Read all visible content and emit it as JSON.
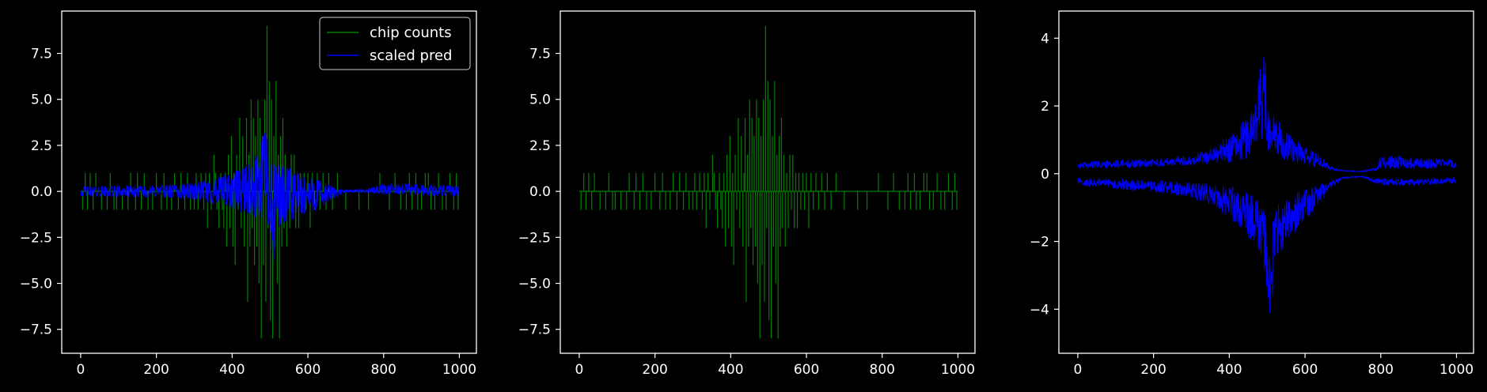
{
  "colors": {
    "background": "#000000",
    "axes": "#ffffff",
    "counts": "#008000",
    "pred": "#0000ff"
  },
  "chart_data": [
    {
      "type": "line",
      "title": "",
      "xlabel": "",
      "ylabel": "",
      "xlim": [
        -50,
        1045
      ],
      "ylim": [
        -8.8,
        9.8
      ],
      "xticks": [
        0,
        200,
        400,
        600,
        800,
        1000
      ],
      "yticks": [
        -7.5,
        -5.0,
        -2.5,
        0.0,
        2.5,
        5.0,
        7.5
      ],
      "legend": {
        "position": "top-right",
        "entries": [
          "chip counts",
          "scaled pred"
        ]
      },
      "grid": false,
      "x_range": [
        0,
        999
      ],
      "series": [
        {
          "name": "chip counts",
          "kind": "sparse_spikes",
          "color": "#008000",
          "baseline": 0,
          "spikes": [
            [
              5,
              -1
            ],
            [
              12,
              1
            ],
            [
              18,
              -1
            ],
            [
              25,
              1
            ],
            [
              33,
              -1
            ],
            [
              40,
              1
            ],
            [
              55,
              -1
            ],
            [
              70,
              -1
            ],
            [
              78,
              1
            ],
            [
              88,
              -1
            ],
            [
              95,
              -1
            ],
            [
              110,
              -1
            ],
            [
              125,
              -1
            ],
            [
              132,
              1
            ],
            [
              145,
              -1
            ],
            [
              150,
              1
            ],
            [
              160,
              -1
            ],
            [
              168,
              1
            ],
            [
              178,
              -1
            ],
            [
              190,
              -1
            ],
            [
              200,
              1
            ],
            [
              213,
              -1
            ],
            [
              220,
              1
            ],
            [
              228,
              -1
            ],
            [
              240,
              -1
            ],
            [
              248,
              1
            ],
            [
              258,
              -1
            ],
            [
              265,
              1
            ],
            [
              275,
              -1
            ],
            [
              282,
              1
            ],
            [
              290,
              -1
            ],
            [
              300,
              -1
            ],
            [
              305,
              1
            ],
            [
              310,
              -1
            ],
            [
              318,
              1
            ],
            [
              325,
              -1
            ],
            [
              330,
              1
            ],
            [
              335,
              -2
            ],
            [
              340,
              1
            ],
            [
              345,
              -1
            ],
            [
              352,
              2
            ],
            [
              356,
              1
            ],
            [
              360,
              -1
            ],
            [
              365,
              -2
            ],
            [
              370,
              1
            ],
            [
              374,
              -1
            ],
            [
              378,
              -2
            ],
            [
              382,
              1
            ],
            [
              386,
              -3
            ],
            [
              390,
              2
            ],
            [
              394,
              -2
            ],
            [
              398,
              3
            ],
            [
              402,
              -3
            ],
            [
              405,
              1
            ],
            [
              408,
              -4
            ],
            [
              412,
              2
            ],
            [
              416,
              -1
            ],
            [
              420,
              4
            ],
            [
              424,
              -2
            ],
            [
              428,
              3
            ],
            [
              432,
              -3
            ],
            [
              435,
              1
            ],
            [
              438,
              4
            ],
            [
              441,
              -6
            ],
            [
              444,
              2
            ],
            [
              447,
              -3
            ],
            [
              450,
              5
            ],
            [
              453,
              -2
            ],
            [
              456,
              4
            ],
            [
              459,
              -4
            ],
            [
              462,
              3
            ],
            [
              465,
              -3
            ],
            [
              468,
              5
            ],
            [
              471,
              -5
            ],
            [
              474,
              4
            ],
            [
              477,
              -8
            ],
            [
              480,
              3
            ],
            [
              483,
              -4
            ],
            [
              486,
              5
            ],
            [
              489,
              -6
            ],
            [
              492,
              9
            ],
            [
              495,
              -2
            ],
            [
              498,
              6
            ],
            [
              501,
              -7
            ],
            [
              504,
              5
            ],
            [
              507,
              -8
            ],
            [
              510,
              3
            ],
            [
              513,
              -3
            ],
            [
              516,
              6
            ],
            [
              519,
              -5
            ],
            [
              522,
              2
            ],
            [
              525,
              -8
            ],
            [
              528,
              3
            ],
            [
              531,
              -3
            ],
            [
              534,
              4
            ],
            [
              537,
              -2
            ],
            [
              540,
              2
            ],
            [
              544,
              -3
            ],
            [
              548,
              1
            ],
            [
              552,
              -2
            ],
            [
              556,
              2
            ],
            [
              560,
              -1
            ],
            [
              564,
              2
            ],
            [
              568,
              -2
            ],
            [
              572,
              1
            ],
            [
              576,
              -2
            ],
            [
              580,
              1
            ],
            [
              585,
              -1
            ],
            [
              590,
              1
            ],
            [
              595,
              -1
            ],
            [
              600,
              1
            ],
            [
              606,
              -2
            ],
            [
              612,
              1
            ],
            [
              618,
              -1
            ],
            [
              625,
              1
            ],
            [
              632,
              -1
            ],
            [
              640,
              1
            ],
            [
              648,
              -1
            ],
            [
              655,
              1
            ],
            [
              665,
              -1
            ],
            [
              678,
              1
            ],
            [
              700,
              -1
            ],
            [
              735,
              -1
            ],
            [
              760,
              -1
            ],
            [
              790,
              1
            ],
            [
              815,
              -1
            ],
            [
              830,
              1
            ],
            [
              845,
              -1
            ],
            [
              860,
              -1
            ],
            [
              868,
              1
            ],
            [
              875,
              -1
            ],
            [
              885,
              1
            ],
            [
              890,
              -1
            ],
            [
              900,
              -1
            ],
            [
              910,
              1
            ],
            [
              918,
              1
            ],
            [
              925,
              -1
            ],
            [
              935,
              -1
            ],
            [
              945,
              1
            ],
            [
              955,
              -1
            ],
            [
              965,
              -1
            ],
            [
              975,
              1
            ],
            [
              985,
              -1
            ],
            [
              992,
              1
            ],
            [
              997,
              -1
            ]
          ]
        },
        {
          "name": "scaled pred",
          "kind": "envelope",
          "color": "#0000ff",
          "envelope": [
            [
              0,
              0.25
            ],
            [
              100,
              0.3
            ],
            [
              200,
              0.3
            ],
            [
              300,
              0.45
            ],
            [
              360,
              0.7
            ],
            [
              420,
              1.2
            ],
            [
              460,
              1.8
            ],
            [
              480,
              3.0
            ],
            [
              493,
              4.3
            ],
            [
              500,
              1.5
            ],
            [
              520,
              1.5
            ],
            [
              560,
              1.2
            ],
            [
              600,
              0.8
            ],
            [
              640,
              0.55
            ],
            [
              680,
              0.1
            ],
            [
              750,
              0.1
            ],
            [
              800,
              0.4
            ],
            [
              860,
              0.4
            ],
            [
              1000,
              0.3
            ]
          ],
          "lower_envelope": [
            [
              0,
              -0.25
            ],
            [
              100,
              -0.3
            ],
            [
              200,
              -0.3
            ],
            [
              300,
              -0.45
            ],
            [
              360,
              -0.7
            ],
            [
              420,
              -1.1
            ],
            [
              460,
              -1.4
            ],
            [
              490,
              -1.6
            ],
            [
              500,
              -3.0
            ],
            [
              507,
              -4.8
            ],
            [
              520,
              -2.0
            ],
            [
              560,
              -1.6
            ],
            [
              600,
              -1.2
            ],
            [
              640,
              -0.9
            ],
            [
              670,
              -0.35
            ],
            [
              700,
              -0.05
            ],
            [
              750,
              -0.05
            ],
            [
              800,
              -0.15
            ],
            [
              860,
              -0.15
            ],
            [
              1000,
              -0.3
            ]
          ]
        }
      ]
    },
    {
      "type": "line",
      "title": "",
      "xlabel": "",
      "ylabel": "",
      "xlim": [
        -50,
        1045
      ],
      "ylim": [
        -8.8,
        9.8
      ],
      "xticks": [
        0,
        200,
        400,
        600,
        800,
        1000
      ],
      "yticks": [
        -7.5,
        -5.0,
        -2.5,
        0.0,
        2.5,
        5.0,
        7.5
      ],
      "grid": false,
      "x_range": [
        0,
        999
      ],
      "series": [
        {
          "kind": "sparse_spikes",
          "color": "#008000",
          "same_as_series": "chip counts"
        }
      ]
    },
    {
      "type": "line",
      "title": "",
      "xlabel": "",
      "ylabel": "",
      "xlim": [
        -50,
        1045
      ],
      "ylim": [
        -5.3,
        4.8
      ],
      "xticks": [
        0,
        200,
        400,
        600,
        800,
        1000
      ],
      "yticks": [
        -4,
        -2,
        0,
        2,
        4
      ],
      "grid": false,
      "x_range": [
        0,
        999
      ],
      "series": [
        {
          "kind": "mirrored_bands",
          "color": "#0000ff",
          "upper_band": [
            [
              0,
              0.15,
              0.35
            ],
            [
              100,
              0.15,
              0.4
            ],
            [
              200,
              0.2,
              0.45
            ],
            [
              300,
              0.25,
              0.55
            ],
            [
              360,
              0.3,
              0.8
            ],
            [
              420,
              0.35,
              1.3
            ],
            [
              460,
              0.5,
              2.0
            ],
            [
              480,
              0.7,
              3.2
            ],
            [
              493,
              0.8,
              4.4
            ],
            [
              500,
              0.7,
              2.2
            ],
            [
              520,
              0.5,
              1.7
            ],
            [
              560,
              0.35,
              1.2
            ],
            [
              600,
              0.25,
              0.8
            ],
            [
              640,
              0.15,
              0.55
            ],
            [
              670,
              0.1,
              0.2
            ],
            [
              700,
              0.07,
              0.1
            ],
            [
              750,
              0.05,
              0.08
            ],
            [
              790,
              0.1,
              0.2
            ],
            [
              800,
              0.15,
              0.55
            ],
            [
              880,
              0.15,
              0.5
            ],
            [
              1000,
              0.15,
              0.4
            ]
          ],
          "lower_band": [
            [
              0,
              -0.1,
              -0.35
            ],
            [
              100,
              -0.15,
              -0.45
            ],
            [
              200,
              -0.2,
              -0.55
            ],
            [
              300,
              -0.25,
              -0.7
            ],
            [
              360,
              -0.3,
              -1.0
            ],
            [
              420,
              -0.4,
              -1.5
            ],
            [
              460,
              -0.6,
              -2.0
            ],
            [
              490,
              -1.0,
              -2.6
            ],
            [
              500,
              -1.4,
              -3.6
            ],
            [
              507,
              -2.0,
              -4.8
            ],
            [
              520,
              -0.9,
              -2.6
            ],
            [
              560,
              -0.6,
              -2.0
            ],
            [
              600,
              -0.45,
              -1.4
            ],
            [
              640,
              -0.3,
              -0.9
            ],
            [
              670,
              -0.2,
              -0.4
            ],
            [
              700,
              -0.1,
              -0.15
            ],
            [
              750,
              -0.06,
              -0.1
            ],
            [
              800,
              -0.15,
              -0.35
            ],
            [
              880,
              -0.15,
              -0.35
            ],
            [
              1000,
              -0.1,
              -0.3
            ]
          ]
        }
      ]
    }
  ]
}
